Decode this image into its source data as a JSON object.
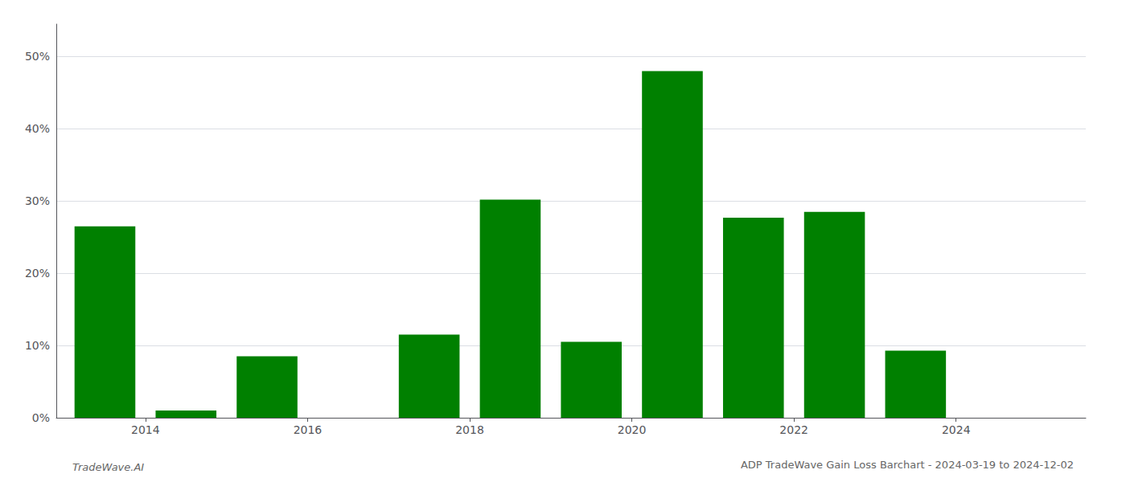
{
  "chart_data": {
    "type": "bar",
    "title": "ADP TradeWave Gain Loss Barchart - 2024-03-19 to 2024-12-02",
    "annotations": [
      "TradeWave.AI"
    ],
    "x": [
      2013,
      2014,
      2015,
      2016,
      2017,
      2018,
      2019,
      2020,
      2021,
      2022,
      2023
    ],
    "values": [
      0.265,
      0.01,
      0.085,
      0.0,
      0.115,
      0.302,
      0.105,
      0.48,
      0.277,
      0.285,
      0.093
    ],
    "color": "#008000",
    "xlim": [
      2012.4,
      2025.1
    ],
    "xticks": [
      {
        "value": 2013.5,
        "label": "2014"
      },
      {
        "value": 2015.5,
        "label": "2016"
      },
      {
        "value": 2017.5,
        "label": "2018"
      },
      {
        "value": 2019.5,
        "label": "2020"
      },
      {
        "value": 2021.5,
        "label": "2022"
      },
      {
        "value": 2023.5,
        "label": "2024"
      }
    ],
    "ylim": [
      0,
      0.545
    ],
    "yticks": [
      {
        "value": 0.0,
        "label": "0%"
      },
      {
        "value": 0.1,
        "label": "10%"
      },
      {
        "value": 0.2,
        "label": "20%"
      },
      {
        "value": 0.3,
        "label": "30%"
      },
      {
        "value": 0.4,
        "label": "40%"
      },
      {
        "value": 0.5,
        "label": "50%"
      }
    ],
    "grid": true
  }
}
